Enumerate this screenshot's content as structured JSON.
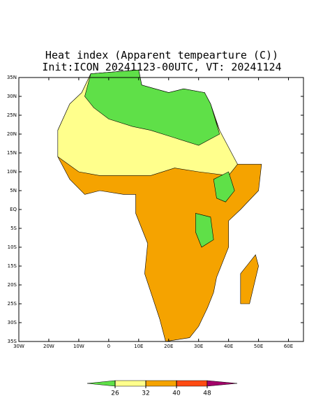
{
  "header": {
    "title": "Heat index (Apparent tempearture (C))",
    "subtitle": "Init:ICON 20241123-00UTC, VT: 20241124"
  },
  "map": {
    "lon_range": [
      -30,
      65
    ],
    "lat_range": [
      -35,
      35
    ],
    "lat_ticks": [
      {
        "value": 35,
        "label": "35N"
      },
      {
        "value": 30,
        "label": "30N"
      },
      {
        "value": 25,
        "label": "25N"
      },
      {
        "value": 20,
        "label": "20N"
      },
      {
        "value": 15,
        "label": "15N"
      },
      {
        "value": 10,
        "label": "10N"
      },
      {
        "value": 5,
        "label": "5N"
      },
      {
        "value": 0,
        "label": "EQ"
      },
      {
        "value": -5,
        "label": "5S"
      },
      {
        "value": -10,
        "label": "10S"
      },
      {
        "value": -15,
        "label": "15S"
      },
      {
        "value": -20,
        "label": "20S"
      },
      {
        "value": -25,
        "label": "25S"
      },
      {
        "value": -30,
        "label": "30S"
      },
      {
        "value": -35,
        "label": "35S"
      }
    ],
    "lon_ticks": [
      {
        "value": -30,
        "label": "30W"
      },
      {
        "value": -20,
        "label": "20W"
      },
      {
        "value": -10,
        "label": "10W"
      },
      0,
      {
        "value": 10,
        "label": "10E"
      },
      {
        "value": 20,
        "label": "20E"
      },
      {
        "value": 30,
        "label": "30E"
      },
      {
        "value": 40,
        "label": "40E"
      },
      {
        "value": 50,
        "label": "50E"
      },
      {
        "value": 60,
        "label": "60E"
      }
    ]
  },
  "colorbar": {
    "levels": [
      26,
      32,
      40,
      48
    ],
    "colors": [
      "#5fe048",
      "#ffff8c",
      "#f5a300",
      "#ff4a12",
      "#a3006a"
    ]
  }
}
